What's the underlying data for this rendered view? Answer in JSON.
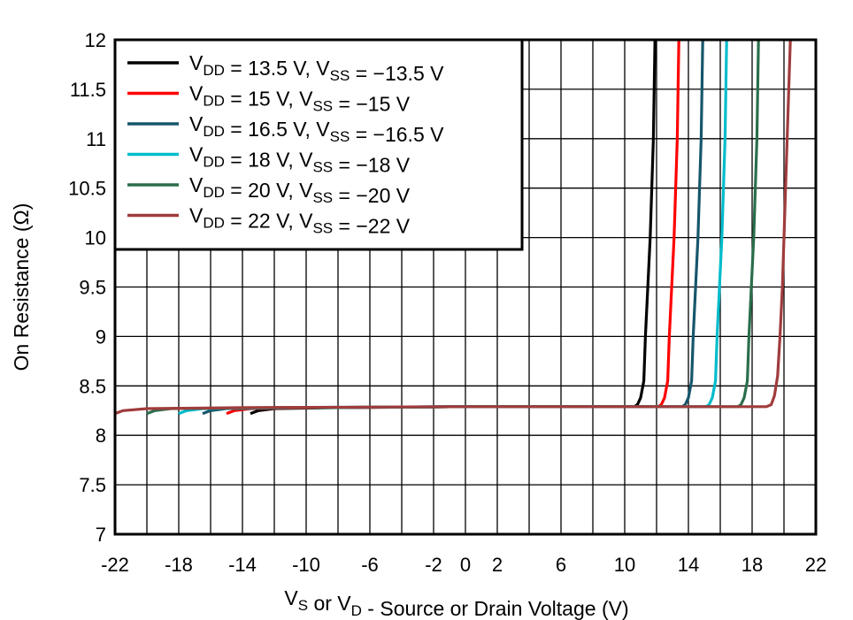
{
  "chart_data": {
    "type": "line",
    "title": "",
    "xlabel": "VS or VD - Source or Drain Voltage (V)",
    "ylabel": "On Resistance (Ω)",
    "xlim": [
      -22,
      22
    ],
    "ylim": [
      7,
      12
    ],
    "xticks": [
      -22,
      -18,
      -14,
      -10,
      -6,
      -2,
      0,
      2,
      6,
      10,
      14,
      18,
      22
    ],
    "xgrid_step": 2,
    "yticks": [
      7,
      7.5,
      8,
      8.5,
      9,
      9.5,
      10,
      10.5,
      11,
      11.5,
      12
    ],
    "ytick_labels": [
      "7",
      "7.5",
      "8",
      "8.5",
      "9",
      "9.5",
      "10",
      "10.5",
      "11",
      "11.5",
      "12"
    ],
    "grid": true,
    "legend_placement": "top-left",
    "series": [
      {
        "name": "VDD = 13.5 V, VSS = −13.5 V",
        "color": "#000000",
        "points": [
          [
            -13.5,
            8.22
          ],
          [
            -13,
            8.25
          ],
          [
            -12,
            8.27
          ],
          [
            -8,
            8.28
          ],
          [
            0,
            8.29
          ],
          [
            10.6,
            8.29
          ],
          [
            10.8,
            8.31
          ],
          [
            11.0,
            8.38
          ],
          [
            11.2,
            8.55
          ],
          [
            11.3,
            9.0
          ],
          [
            11.45,
            9.5
          ],
          [
            11.6,
            10.0
          ],
          [
            11.7,
            10.5
          ],
          [
            11.8,
            11.0
          ],
          [
            11.85,
            11.5
          ],
          [
            11.9,
            12.0
          ]
        ]
      },
      {
        "name": "VDD = 15 V, VSS = −15 V",
        "color": "#ff0000",
        "points": [
          [
            -15,
            8.22
          ],
          [
            -14.5,
            8.25
          ],
          [
            -13.5,
            8.27
          ],
          [
            -9,
            8.28
          ],
          [
            0,
            8.29
          ],
          [
            12.1,
            8.29
          ],
          [
            12.3,
            8.31
          ],
          [
            12.5,
            8.38
          ],
          [
            12.7,
            8.55
          ],
          [
            12.8,
            9.0
          ],
          [
            12.95,
            9.5
          ],
          [
            13.1,
            10.0
          ],
          [
            13.2,
            10.5
          ],
          [
            13.3,
            11.0
          ],
          [
            13.35,
            11.5
          ],
          [
            13.4,
            12.0
          ]
        ]
      },
      {
        "name": "VDD = 16.5 V, VSS = −16.5 V",
        "color": "#17566b",
        "points": [
          [
            -16.5,
            8.22
          ],
          [
            -16,
            8.25
          ],
          [
            -15,
            8.27
          ],
          [
            -10,
            8.28
          ],
          [
            0,
            8.29
          ],
          [
            13.6,
            8.29
          ],
          [
            13.8,
            8.31
          ],
          [
            14.0,
            8.38
          ],
          [
            14.2,
            8.55
          ],
          [
            14.3,
            9.0
          ],
          [
            14.45,
            9.5
          ],
          [
            14.6,
            10.0
          ],
          [
            14.7,
            10.5
          ],
          [
            14.8,
            11.0
          ],
          [
            14.85,
            11.5
          ],
          [
            14.9,
            12.0
          ]
        ]
      },
      {
        "name": "VDD = 18 V, VSS = −18 V",
        "color": "#00bccc",
        "points": [
          [
            -18,
            8.22
          ],
          [
            -17.5,
            8.25
          ],
          [
            -16.5,
            8.27
          ],
          [
            -11,
            8.28
          ],
          [
            0,
            8.29
          ],
          [
            15.1,
            8.29
          ],
          [
            15.3,
            8.31
          ],
          [
            15.5,
            8.38
          ],
          [
            15.7,
            8.55
          ],
          [
            15.8,
            9.0
          ],
          [
            15.95,
            9.5
          ],
          [
            16.1,
            10.0
          ],
          [
            16.2,
            10.5
          ],
          [
            16.3,
            11.0
          ],
          [
            16.35,
            11.5
          ],
          [
            16.4,
            12.0
          ]
        ]
      },
      {
        "name": "VDD = 20 V, VSS = −20 V",
        "color": "#2a6e4c",
        "points": [
          [
            -20,
            8.22
          ],
          [
            -19.5,
            8.25
          ],
          [
            -18.5,
            8.27
          ],
          [
            -12,
            8.28
          ],
          [
            0,
            8.29
          ],
          [
            17.1,
            8.29
          ],
          [
            17.3,
            8.31
          ],
          [
            17.5,
            8.38
          ],
          [
            17.7,
            8.55
          ],
          [
            17.8,
            9.0
          ],
          [
            17.95,
            9.5
          ],
          [
            18.1,
            10.0
          ],
          [
            18.2,
            10.5
          ],
          [
            18.3,
            11.0
          ],
          [
            18.35,
            11.5
          ],
          [
            18.4,
            12.0
          ]
        ]
      },
      {
        "name": "VDD = 22 V, VSS = −22 V",
        "color": "#a03c3c",
        "points": [
          [
            -22,
            8.22
          ],
          [
            -21.5,
            8.25
          ],
          [
            -20,
            8.27
          ],
          [
            -14,
            8.28
          ],
          [
            0,
            8.29
          ],
          [
            18.9,
            8.29
          ],
          [
            19.2,
            8.31
          ],
          [
            19.4,
            8.4
          ],
          [
            19.6,
            8.6
          ],
          [
            19.75,
            9.0
          ],
          [
            19.9,
            9.5
          ],
          [
            20.0,
            10.0
          ],
          [
            20.1,
            10.5
          ],
          [
            20.2,
            11.0
          ],
          [
            20.3,
            11.5
          ],
          [
            20.4,
            12.0
          ]
        ]
      }
    ]
  }
}
